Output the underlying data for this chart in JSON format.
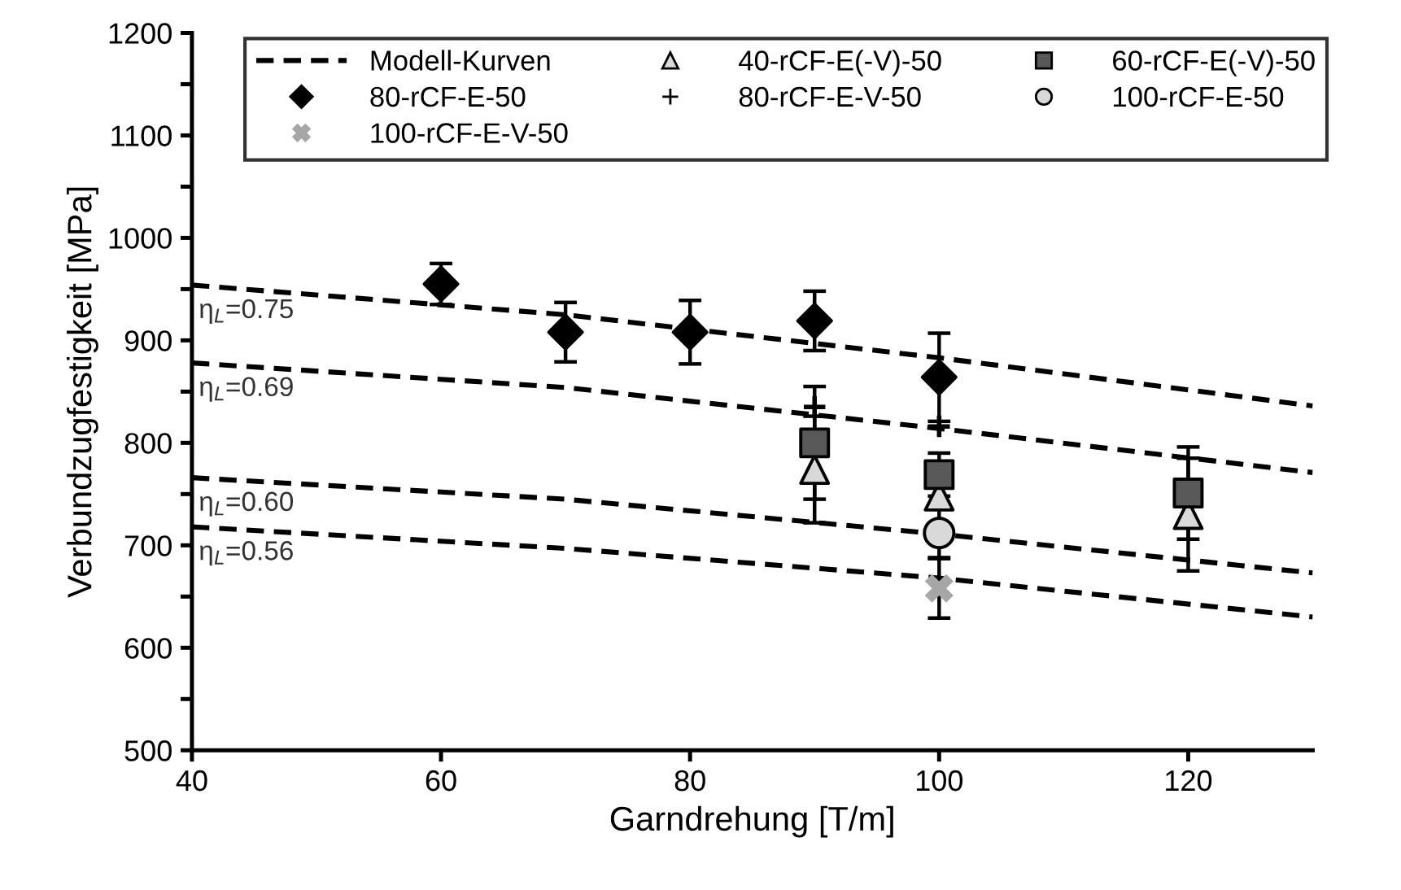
{
  "chart_data": {
    "type": "scatter",
    "xlabel": "Garndrehung [T/m]",
    "ylabel": "Verbundzugfestigkeit [MPa]",
    "xlim": [
      40,
      130
    ],
    "xticks": [
      40,
      60,
      80,
      100,
      120
    ],
    "ylim": [
      500,
      1200
    ],
    "yticks": [
      500,
      {
        "value": 550,
        "label": null
      },
      600,
      {
        "value": 650,
        "label": null
      },
      700,
      {
        "value": 750,
        "label": null
      },
      800,
      {
        "value": 850,
        "label": null
      },
      900,
      {
        "value": 950,
        "label": null
      },
      1000,
      {
        "value": 1050,
        "label": null
      },
      1100,
      {
        "value": 1150,
        "label": null
      },
      1200
    ],
    "grid": false,
    "legend": "top",
    "series": [
      {
        "name": "Modell-Kurven",
        "type": "line",
        "line_style": "dashed",
        "marker": "none",
        "color": "#000000",
        "x": [
          40,
          70,
          100,
          130
        ],
        "values": [
          954,
          925,
          883,
          836
        ]
      },
      {
        "name": "40-rCF-E(-V)-50",
        "marker": "triangle",
        "color": "#d9d9d9",
        "x": [
          90,
          100,
          120
        ],
        "values": [
          774,
          748,
          730
        ],
        "errors": [
          52,
          null,
          55
        ]
      },
      {
        "name": "60-rCF-E(-V)-50",
        "marker": "square",
        "color": "#595959",
        "x": [
          90,
          100,
          120
        ],
        "values": [
          800,
          769,
          751
        ],
        "errors": [
          55,
          21,
          45
        ]
      },
      {
        "name": "80-rCF-E-50",
        "marker": "diamond",
        "color": "#000000",
        "x": [
          60,
          70,
          80,
          90,
          100
        ],
        "values": [
          955,
          908,
          908,
          919,
          864
        ],
        "errors": [
          20,
          29,
          31,
          29,
          43
        ]
      },
      {
        "name": "80-rCF-E-V-50",
        "marker": "plus",
        "color": "#000000",
        "x": [
          90,
          100
        ],
        "values": [
          835,
          816
        ]
      },
      {
        "name": "100-rCF-E-50",
        "marker": "circle",
        "color": "#d9d9d9",
        "x": [
          100
        ],
        "values": [
          712
        ],
        "errors": [
          24
        ]
      },
      {
        "name": "100-rCF-E-V-50",
        "marker": "cross",
        "color": "#a6a6a6",
        "x": [
          100
        ],
        "values": [
          658
        ],
        "errors": [
          29
        ]
      },
      {
        "type": "line",
        "line_style": "dashed",
        "marker": "none",
        "color": "#000000",
        "x": [
          40,
          70,
          100,
          130
        ],
        "values": [
          878,
          854,
          814,
          771
        ]
      },
      {
        "type": "line",
        "line_style": "dashed",
        "marker": "none",
        "color": "#000000",
        "x": [
          40,
          70,
          100,
          130
        ],
        "values": [
          766,
          745,
          711,
          673
        ]
      },
      {
        "type": "line",
        "line_style": "dashed",
        "marker": "none",
        "color": "#000000",
        "x": [
          40,
          70,
          100,
          130
        ],
        "values": [
          718,
          697,
          668,
          630
        ]
      }
    ],
    "annotations": [
      "η$_{L}$=0.75",
      "η$_{L}$=0.69",
      "η$_{L}$=0.60",
      "η$_{L}$=0.56"
    ]
  }
}
